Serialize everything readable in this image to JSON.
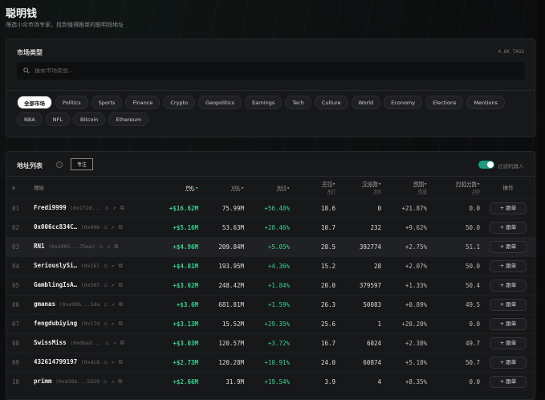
{
  "header": {
    "title": "聪明钱",
    "subtitle": "筛选小众市场专家，找到值得跟单的聪明钱地址"
  },
  "market_panel": {
    "title": "市场类型",
    "tag_count": "4.6K TAGS",
    "search_placeholder": "搜索市场类型...",
    "chips": [
      {
        "label": "全部市场",
        "active": true
      },
      {
        "label": "Politics"
      },
      {
        "label": "Sports"
      },
      {
        "label": "Finance"
      },
      {
        "label": "Crypto"
      },
      {
        "label": "Geopolitics"
      },
      {
        "label": "Earnings"
      },
      {
        "label": "Tech"
      },
      {
        "label": "Culture"
      },
      {
        "label": "World"
      },
      {
        "label": "Economy"
      },
      {
        "label": "Elections"
      },
      {
        "label": "Mentions"
      },
      {
        "label": "NBA"
      },
      {
        "label": "NFL"
      },
      {
        "label": "Bitcoin"
      },
      {
        "label": "Ethereum"
      }
    ]
  },
  "address_panel": {
    "title": "地址列表",
    "info_icon": "info-icon",
    "filter_button": "专注",
    "toggle_label": "过滤机器人",
    "toggle_on": true,
    "columns": {
      "num": "#",
      "address": "地址",
      "pnl": "PNL",
      "vol": "VOL",
      "roi": "ROI",
      "avg": "平均",
      "avg_sub": "ADT",
      "trades": "交易数",
      "trades_sub": "30D",
      "predict": "预期",
      "predict_sub": "收益",
      "timing": "时机分数",
      "timing_sub": "30D",
      "action": "操作"
    },
    "follow_label": "+ 跟单",
    "rows": [
      {
        "num": "01",
        "name": "Fredi9999",
        "hash": "(0x1f2d...",
        "pnl": "+$16.62M",
        "vol": "75.99M",
        "roi": "+56.48%",
        "avg": "18.6",
        "trades": "0",
        "predict": "+21.87%",
        "timing": "0.0"
      },
      {
        "num": "02",
        "name": "0x006cc834C…",
        "hash": "(0x006",
        "pnl": "+$5.16M",
        "vol": "53.63M",
        "roi": "+20.46%",
        "avg": "10.7",
        "trades": "232",
        "predict": "+9.62%",
        "timing": "50.0"
      },
      {
        "num": "03",
        "name": "RN1",
        "hash": "(0x2005...75ea)",
        "pnl": "+$4.96M",
        "vol": "209.84M",
        "roi": "+5.05%",
        "avg": "28.5",
        "trades": "392774",
        "predict": "+2.75%",
        "timing": "51.1"
      },
      {
        "num": "04",
        "name": "SeriouslySi…",
        "hash": "(0x16l",
        "pnl": "+$4.01M",
        "vol": "193.95M",
        "roi": "+4.36%",
        "avg": "15.2",
        "trades": "28",
        "predict": "+2.07%",
        "timing": "50.0"
      },
      {
        "num": "05",
        "name": "GamblingIsA…",
        "hash": "(0x507",
        "pnl": "+$3.62M",
        "vol": "248.42M",
        "roi": "+1.84%",
        "avg": "20.0",
        "trades": "379597",
        "predict": "+1.33%",
        "timing": "50.4"
      },
      {
        "num": "06",
        "name": "gmanas",
        "hash": "(0xe90b...5da",
        "pnl": "+$3.6M",
        "vol": "681.81M",
        "roi": "+1.59%",
        "avg": "26.3",
        "trades": "50083",
        "predict": "+0.89%",
        "timing": "49.5"
      },
      {
        "num": "07",
        "name": "fengdubiying",
        "hash": "(0x17d",
        "pnl": "+$3.13M",
        "vol": "15.52M",
        "roi": "+29.35%",
        "avg": "25.6",
        "trades": "1",
        "predict": "+20.20%",
        "timing": "0.0"
      },
      {
        "num": "08",
        "name": "SwissMiss",
        "hash": "(0xdbad...",
        "pnl": "+$3.03M",
        "vol": "120.57M",
        "roi": "+3.72%",
        "avg": "16.7",
        "trades": "6024",
        "predict": "+2.38%",
        "timing": "49.7"
      },
      {
        "num": "09",
        "name": "432614799197",
        "hash": "(0xdc8",
        "pnl": "+$2.73M",
        "vol": "120.28M",
        "roi": "+10.91%",
        "avg": "24.0",
        "trades": "60874",
        "predict": "+5.18%",
        "timing": "50.7"
      },
      {
        "num": "10",
        "name": "primm",
        "hash": "(0xd38b...5029",
        "pnl": "+$2.66M",
        "vol": "31.9M",
        "roi": "+19.54%",
        "avg": "3.9",
        "trades": "4",
        "predict": "+8.35%",
        "timing": "0.0"
      }
    ]
  }
}
